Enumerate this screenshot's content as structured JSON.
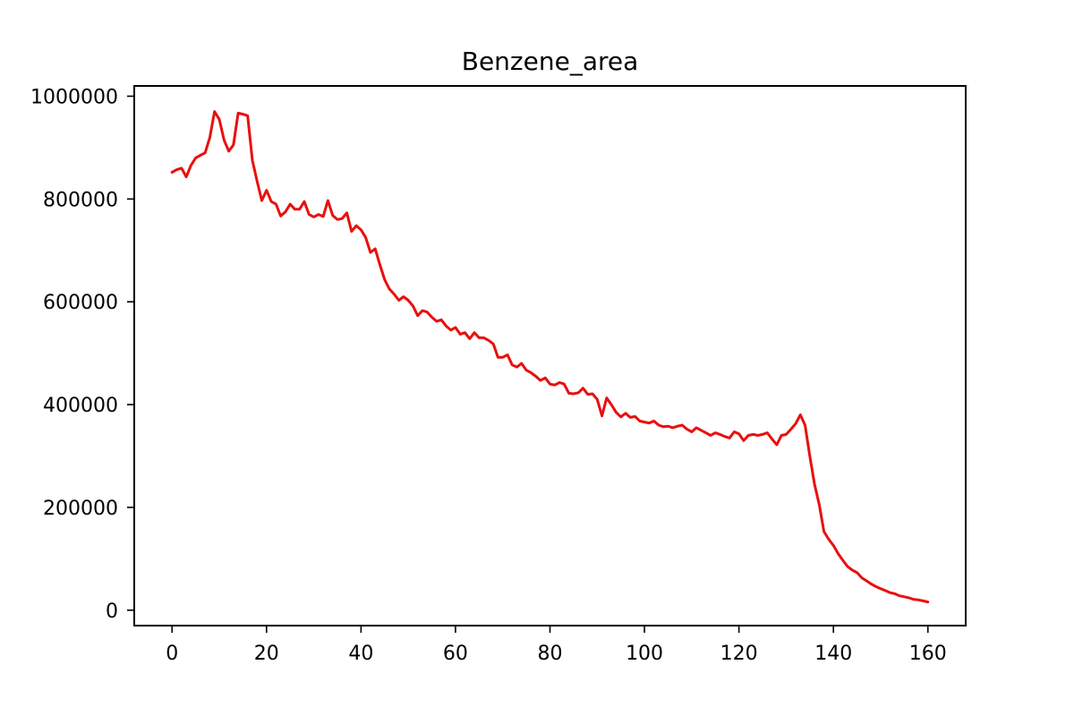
{
  "chart_data": {
    "type": "line",
    "title": "Benzene_area",
    "xlabel": "",
    "ylabel": "",
    "xlim": [
      -8,
      168
    ],
    "ylim": [
      -30000,
      1020000
    ],
    "grid": false,
    "x_ticks": [
      0,
      20,
      40,
      60,
      80,
      100,
      120,
      140,
      160
    ],
    "x_tick_labels": [
      "0",
      "20",
      "40",
      "60",
      "80",
      "100",
      "120",
      "140",
      "160"
    ],
    "y_ticks": [
      0,
      200000,
      400000,
      600000,
      800000,
      1000000
    ],
    "y_tick_labels": [
      "0",
      "200000",
      "400000",
      "600000",
      "800000",
      "1000000"
    ],
    "series": [
      {
        "color": "#e8100f",
        "x": [
          0,
          1,
          2,
          3,
          4,
          5,
          6,
          7,
          8,
          9,
          10,
          11,
          12,
          13,
          14,
          15,
          16,
          17,
          18,
          19,
          20,
          21,
          22,
          23,
          24,
          25,
          26,
          27,
          28,
          29,
          30,
          31,
          32,
          33,
          34,
          35,
          36,
          37,
          38,
          39,
          40,
          41,
          42,
          43,
          44,
          45,
          46,
          47,
          48,
          49,
          50,
          51,
          52,
          53,
          54,
          55,
          56,
          57,
          58,
          59,
          60,
          61,
          62,
          63,
          64,
          65,
          66,
          67,
          68,
          69,
          70,
          71,
          72,
          73,
          74,
          75,
          76,
          77,
          78,
          79,
          80,
          81,
          82,
          83,
          84,
          85,
          86,
          87,
          88,
          89,
          90,
          91,
          92,
          93,
          94,
          95,
          96,
          97,
          98,
          99,
          100,
          101,
          102,
          103,
          104,
          105,
          106,
          107,
          108,
          109,
          110,
          111,
          112,
          113,
          114,
          115,
          116,
          117,
          118,
          119,
          120,
          121,
          122,
          123,
          124,
          125,
          126,
          127,
          128,
          129,
          130,
          131,
          132,
          133,
          134,
          135,
          136,
          137,
          138,
          139,
          140,
          141,
          142,
          143,
          144,
          145,
          146,
          147,
          148,
          149,
          150,
          151,
          152,
          153,
          154,
          155,
          156,
          157,
          158,
          159,
          160
        ],
        "values": [
          852000,
          857000,
          860000,
          843000,
          865000,
          880000,
          885000,
          890000,
          920000,
          970000,
          955000,
          915000,
          893000,
          905000,
          967000,
          965000,
          962000,
          875000,
          835000,
          797000,
          817000,
          795000,
          790000,
          767000,
          775000,
          790000,
          780000,
          780000,
          795000,
          770000,
          765000,
          770000,
          766000,
          797000,
          768000,
          760000,
          762000,
          773000,
          737000,
          748000,
          740000,
          725000,
          696000,
          703000,
          672000,
          643000,
          625000,
          615000,
          603000,
          610000,
          603000,
          592000,
          573000,
          583000,
          580000,
          570000,
          562000,
          565000,
          553000,
          545000,
          550000,
          537000,
          540000,
          528000,
          540000,
          530000,
          530000,
          525000,
          518000,
          492000,
          492000,
          497000,
          477000,
          473000,
          480000,
          467000,
          462000,
          455000,
          447000,
          452000,
          440000,
          438000,
          443000,
          440000,
          422000,
          421000,
          423000,
          432000,
          420000,
          421000,
          410000,
          378000,
          413000,
          400000,
          385000,
          376000,
          383000,
          375000,
          377000,
          368000,
          366000,
          364000,
          368000,
          360000,
          357000,
          358000,
          355000,
          358000,
          360000,
          352000,
          347000,
          355000,
          350000,
          345000,
          340000,
          345000,
          342000,
          338000,
          335000,
          347000,
          343000,
          330000,
          340000,
          342000,
          340000,
          342000,
          345000,
          333000,
          322000,
          340000,
          342000,
          352000,
          363000,
          380000,
          360000,
          300000,
          245000,
          205000,
          153000,
          138000,
          126000,
          110000,
          97000,
          85000,
          78000,
          73000,
          63000,
          57000,
          51000,
          46000,
          42000,
          38000,
          34000,
          32000,
          28000,
          26000,
          24000,
          21000,
          20000,
          18000,
          16000
        ]
      }
    ]
  }
}
